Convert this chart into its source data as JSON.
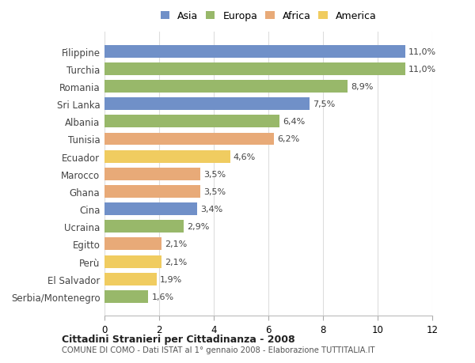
{
  "categories": [
    "Filippine",
    "Turchia",
    "Romania",
    "Sri Lanka",
    "Albania",
    "Tunisia",
    "Ecuador",
    "Marocco",
    "Ghana",
    "Cina",
    "Ucraina",
    "Egitto",
    "Perù",
    "El Salvador",
    "Serbia/Montenegro"
  ],
  "values": [
    11.0,
    11.0,
    8.9,
    7.5,
    6.4,
    6.2,
    4.6,
    3.5,
    3.5,
    3.4,
    2.9,
    2.1,
    2.1,
    1.9,
    1.6
  ],
  "continents": [
    "Asia",
    "Europa",
    "Europa",
    "Asia",
    "Europa",
    "Africa",
    "America",
    "Africa",
    "Africa",
    "Asia",
    "Europa",
    "Africa",
    "America",
    "America",
    "Europa"
  ],
  "labels": [
    "11,0%",
    "11,0%",
    "8,9%",
    "7,5%",
    "6,4%",
    "6,2%",
    "4,6%",
    "3,5%",
    "3,5%",
    "3,4%",
    "2,9%",
    "2,1%",
    "2,1%",
    "1,9%",
    "1,6%"
  ],
  "colors": {
    "Asia": "#7090C8",
    "Europa": "#98B86A",
    "Africa": "#E8AA78",
    "America": "#F0CC60"
  },
  "legend_order": [
    "Asia",
    "Europa",
    "Africa",
    "America"
  ],
  "title1": "Cittadini Stranieri per Cittadinanza - 2008",
  "title2": "COMUNE DI COMO - Dati ISTAT al 1° gennaio 2008 - Elaborazione TUTTITALIA.IT",
  "xlim": [
    0,
    12
  ],
  "xticks": [
    0,
    2,
    4,
    6,
    8,
    10,
    12
  ],
  "background_color": "#ffffff",
  "plot_bg_color": "#ffffff",
  "bar_height": 0.72,
  "label_fontsize": 8.0,
  "ytick_fontsize": 8.5,
  "xtick_fontsize": 8.5
}
